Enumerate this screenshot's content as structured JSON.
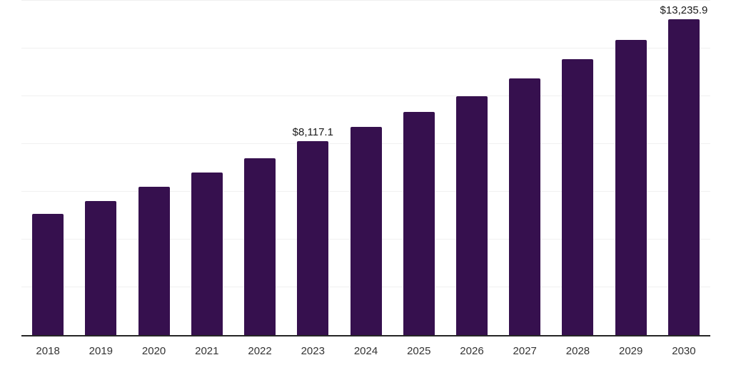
{
  "chart_data": {
    "type": "bar",
    "title": "",
    "xlabel": "",
    "ylabel": "",
    "categories": [
      "2018",
      "2019",
      "2020",
      "2021",
      "2022",
      "2023",
      "2024",
      "2025",
      "2026",
      "2027",
      "2028",
      "2029",
      "2030"
    ],
    "values": [
      5075,
      5610,
      6210,
      6805,
      7400,
      8117.1,
      8715,
      9345,
      10000,
      10745,
      11550,
      12360,
      13235.9
    ],
    "data_labels": [
      "",
      "",
      "",
      "",
      "",
      "$8,117.1",
      "",
      "",
      "",
      "",
      "",
      "",
      "$13,235.9"
    ],
    "ylim": [
      0,
      14000
    ],
    "grid_step": 2000,
    "grid_on": true,
    "legend": "none",
    "colors": {
      "bar": "#36104e",
      "gridline": "#f0f0f0",
      "axis_line": "#262626",
      "tick_label": "#333333",
      "data_label": "#1a1a1a",
      "background": "#ffffff"
    }
  }
}
